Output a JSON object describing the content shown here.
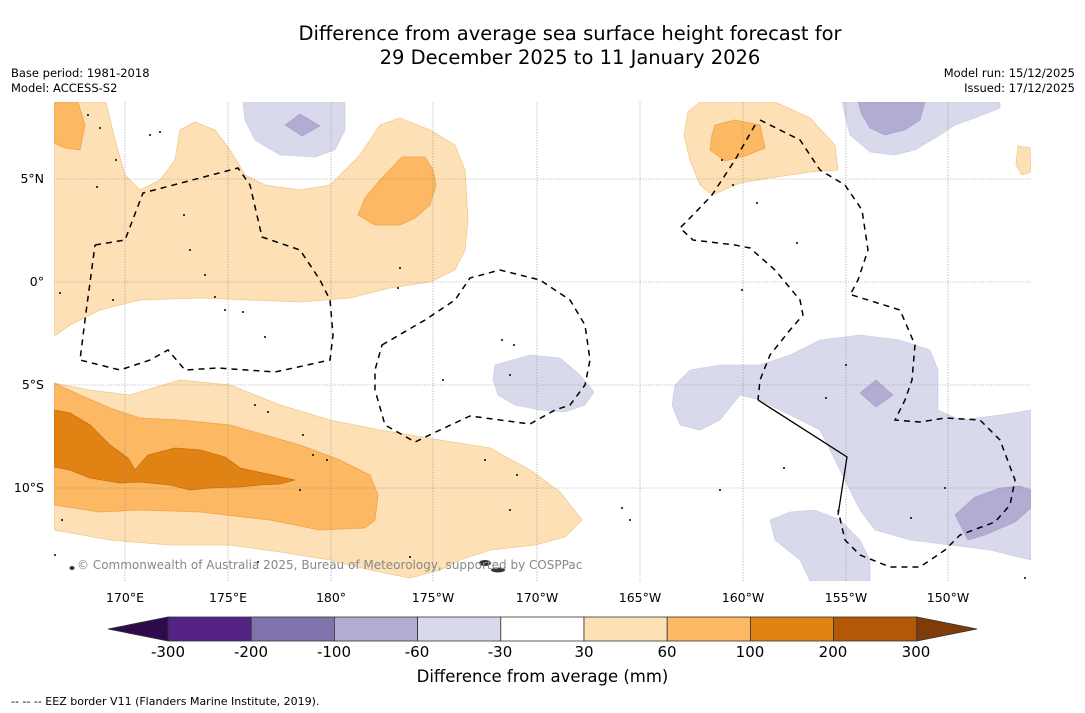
{
  "header": {
    "title_line1": "Difference from average sea surface height forecast for",
    "title_line2": "29 December 2025 to 11 January 2026",
    "base_period": "Base period: 1981-2018",
    "model": "Model: ACCESS-S2",
    "model_run": "Model run: 15/12/2025",
    "issued": "Issued: 17/12/2025"
  },
  "map": {
    "lat_labels": [
      "5°N",
      "0°",
      "5°S",
      "10°S"
    ],
    "lon_labels": [
      "170°E",
      "175°E",
      "180°",
      "175°W",
      "170°W",
      "165°W",
      "160°W",
      "155°W",
      "150°W"
    ],
    "copyright": "© Commonwealth of Australia 2025, Bureau of Meteorology, supported by COSPPac",
    "extent": {
      "lon_min": 166.5,
      "lon_max": 213.9,
      "lat_min": -14.5,
      "lat_max": 8.8
    }
  },
  "colorbar": {
    "label": "Difference from average (mm)",
    "ticks": [
      "-300",
      "-200",
      "-100",
      "-60",
      "-30",
      "30",
      "60",
      "100",
      "200",
      "300"
    ],
    "colors": {
      "below_-300": "#2f0b4d",
      "-300_-200": "#542385",
      "-200_-100": "#8073ac",
      "-100_-60": "#b2abd2",
      "-60_-30": "#d8daeb",
      "-30_30": "#ffffff",
      "30_60": "#fee0b6",
      "60_100": "#fdb863",
      "100_200": "#e08214",
      "200_300": "#b35806",
      "above_300": "#7f3b08"
    }
  },
  "footnote": "--  --  -- EEZ border V11 (Flanders Marine Institute, 2019)."
}
